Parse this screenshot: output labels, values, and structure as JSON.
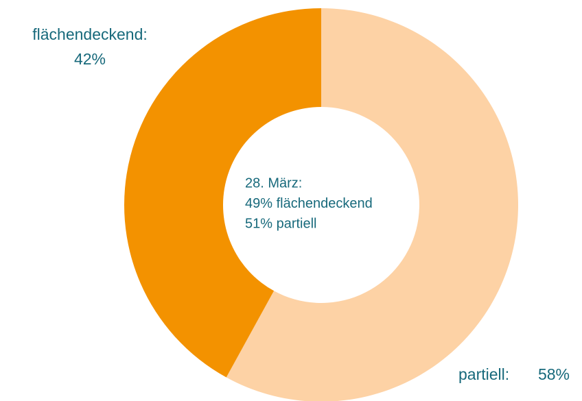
{
  "chart_data": {
    "type": "donut",
    "categories": [
      "partiell:",
      "flächendeckend:"
    ],
    "values": [
      58,
      42
    ],
    "value_labels": [
      "58%",
      "42%"
    ],
    "colors": [
      "#fdd2a5",
      "#f39200"
    ],
    "annotation": [
      "28. März:",
      "49% flächendeckend",
      "51% partiell"
    ]
  }
}
